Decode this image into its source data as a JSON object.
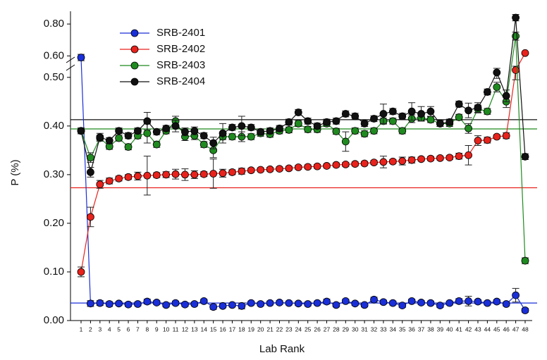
{
  "chart_data": {
    "type": "line",
    "xlabel": "Lab Rank",
    "ylabel": "P (%)",
    "categories": [
      "1",
      "2",
      "3",
      "4",
      "5",
      "6",
      "7",
      "8",
      "9",
      "10",
      "11",
      "12",
      "13",
      "14",
      "15",
      "16",
      "17",
      "18",
      "19",
      "20",
      "21",
      "22",
      "23",
      "24",
      "25",
      "26",
      "27",
      "28",
      "29",
      "30",
      "31",
      "32",
      "33",
      "34",
      "35",
      "36",
      "37",
      "38",
      "39",
      "40",
      "41",
      "42",
      "43",
      "44",
      "45",
      "46",
      "47",
      "48"
    ],
    "ylim": [
      0,
      0.88
    ],
    "ybreak": [
      0.52,
      0.575
    ],
    "yticks": [
      {
        "value": 0,
        "label": "0.00"
      },
      {
        "value": 0.1,
        "label": "0.10"
      },
      {
        "value": 0.2,
        "label": "0.20"
      },
      {
        "value": 0.3,
        "label": "0.30"
      },
      {
        "value": 0.4,
        "label": "0.40"
      },
      {
        "value": 0.5,
        "label": "0.50"
      },
      {
        "value": 0.6,
        "label": "0.60"
      },
      {
        "value": 0.8,
        "label": "0.80"
      }
    ],
    "legend": "upper left",
    "series": [
      {
        "name": "SRB-2401",
        "color": "#1a2fd8",
        "ref": 0.036,
        "values": [
          0.59,
          0.035,
          0.036,
          0.034,
          0.035,
          0.033,
          0.034,
          0.039,
          0.037,
          0.032,
          0.036,
          0.033,
          0.034,
          0.04,
          0.028,
          0.03,
          0.032,
          0.03,
          0.036,
          0.034,
          0.036,
          0.037,
          0.036,
          0.035,
          0.034,
          0.036,
          0.039,
          0.032,
          0.04,
          0.035,
          0.032,
          0.043,
          0.038,
          0.036,
          0.031,
          0.04,
          0.037,
          0.036,
          0.031,
          0.036,
          0.04,
          0.04,
          0.039,
          0.036,
          0.039,
          0.034,
          0.052,
          0.021
        ],
        "errors": [
          0.02,
          0.006,
          0.005,
          0.005,
          0.004,
          0.004,
          0.004,
          0.005,
          0.004,
          0.004,
          0.004,
          0.004,
          0.004,
          0.004,
          0.005,
          0.004,
          0.004,
          0.006,
          0.004,
          0.004,
          0.004,
          0.004,
          0.004,
          0.004,
          0.004,
          0.004,
          0.005,
          0.004,
          0.004,
          0.004,
          0.004,
          0.005,
          0.004,
          0.004,
          0.004,
          0.004,
          0.004,
          0.004,
          0.004,
          0.004,
          0.005,
          0.01,
          0.004,
          0.004,
          0.004,
          0.004,
          0.014,
          0.004
        ]
      },
      {
        "name": "SRB-2402",
        "color": "#e8221c",
        "ref": 0.273,
        "values": [
          0.1,
          0.213,
          0.28,
          0.287,
          0.292,
          0.295,
          0.297,
          0.298,
          0.299,
          0.3,
          0.301,
          0.3,
          0.3,
          0.301,
          0.302,
          0.303,
          0.305,
          0.307,
          0.309,
          0.31,
          0.311,
          0.312,
          0.313,
          0.315,
          0.316,
          0.317,
          0.318,
          0.32,
          0.321,
          0.322,
          0.323,
          0.325,
          0.326,
          0.327,
          0.328,
          0.33,
          0.332,
          0.333,
          0.334,
          0.335,
          0.338,
          0.34,
          0.37,
          0.371,
          0.378,
          0.38,
          0.515,
          0.618
        ],
        "errors": [
          0.01,
          0.02,
          0.008,
          0.006,
          0.005,
          0.005,
          0.008,
          0.04,
          0.005,
          0.006,
          0.01,
          0.012,
          0.008,
          0.005,
          0.03,
          0.008,
          0.005,
          0.006,
          0.004,
          0.004,
          0.004,
          0.004,
          0.004,
          0.004,
          0.004,
          0.004,
          0.004,
          0.004,
          0.004,
          0.004,
          0.004,
          0.004,
          0.012,
          0.004,
          0.008,
          0.006,
          0.004,
          0.004,
          0.004,
          0.004,
          0.006,
          0.02,
          0.01,
          0.006,
          0.004,
          0.006,
          0.02,
          0.006
        ]
      },
      {
        "name": "SRB-2403",
        "color": "#1f8a1f",
        "ref": 0.394,
        "values": [
          0.39,
          0.335,
          0.375,
          0.358,
          0.375,
          0.357,
          0.38,
          0.385,
          0.362,
          0.39,
          0.41,
          0.378,
          0.38,
          0.362,
          0.35,
          0.378,
          0.378,
          0.378,
          0.378,
          0.385,
          0.383,
          0.39,
          0.392,
          0.405,
          0.393,
          0.393,
          0.405,
          0.389,
          0.368,
          0.39,
          0.384,
          0.39,
          0.41,
          0.41,
          0.39,
          0.415,
          0.417,
          0.413,
          0.405,
          0.405,
          0.418,
          0.395,
          0.435,
          0.43,
          0.48,
          0.45,
          0.724,
          0.123
        ],
        "errors": [
          0.006,
          0.01,
          0.006,
          0.006,
          0.006,
          0.006,
          0.006,
          0.02,
          0.006,
          0.006,
          0.01,
          0.008,
          0.008,
          0.006,
          0.015,
          0.006,
          0.006,
          0.01,
          0.006,
          0.006,
          0.006,
          0.006,
          0.006,
          0.006,
          0.006,
          0.006,
          0.006,
          0.006,
          0.02,
          0.006,
          0.006,
          0.006,
          0.006,
          0.006,
          0.006,
          0.008,
          0.006,
          0.006,
          0.006,
          0.006,
          0.006,
          0.01,
          0.008,
          0.006,
          0.01,
          0.012,
          0.025,
          0.006
        ]
      },
      {
        "name": "SRB-2404",
        "color": "#111111",
        "ref": 0.413,
        "values": [
          0.39,
          0.305,
          0.377,
          0.37,
          0.39,
          0.38,
          0.39,
          0.41,
          0.388,
          0.395,
          0.4,
          0.388,
          0.39,
          0.38,
          0.365,
          0.385,
          0.397,
          0.4,
          0.397,
          0.388,
          0.39,
          0.395,
          0.408,
          0.428,
          0.41,
          0.4,
          0.408,
          0.41,
          0.425,
          0.42,
          0.405,
          0.415,
          0.425,
          0.43,
          0.42,
          0.43,
          0.425,
          0.43,
          0.405,
          0.408,
          0.445,
          0.432,
          0.438,
          0.47,
          0.51,
          0.462,
          0.84,
          0.337
        ],
        "errors": [
          0.006,
          0.01,
          0.008,
          0.006,
          0.006,
          0.006,
          0.006,
          0.018,
          0.006,
          0.006,
          0.012,
          0.008,
          0.008,
          0.006,
          0.012,
          0.02,
          0.006,
          0.02,
          0.006,
          0.006,
          0.006,
          0.006,
          0.006,
          0.006,
          0.006,
          0.006,
          0.006,
          0.006,
          0.006,
          0.006,
          0.006,
          0.006,
          0.02,
          0.006,
          0.006,
          0.018,
          0.015,
          0.01,
          0.006,
          0.006,
          0.006,
          0.015,
          0.01,
          0.006,
          0.012,
          0.012,
          0.02,
          0.006
        ]
      }
    ]
  }
}
